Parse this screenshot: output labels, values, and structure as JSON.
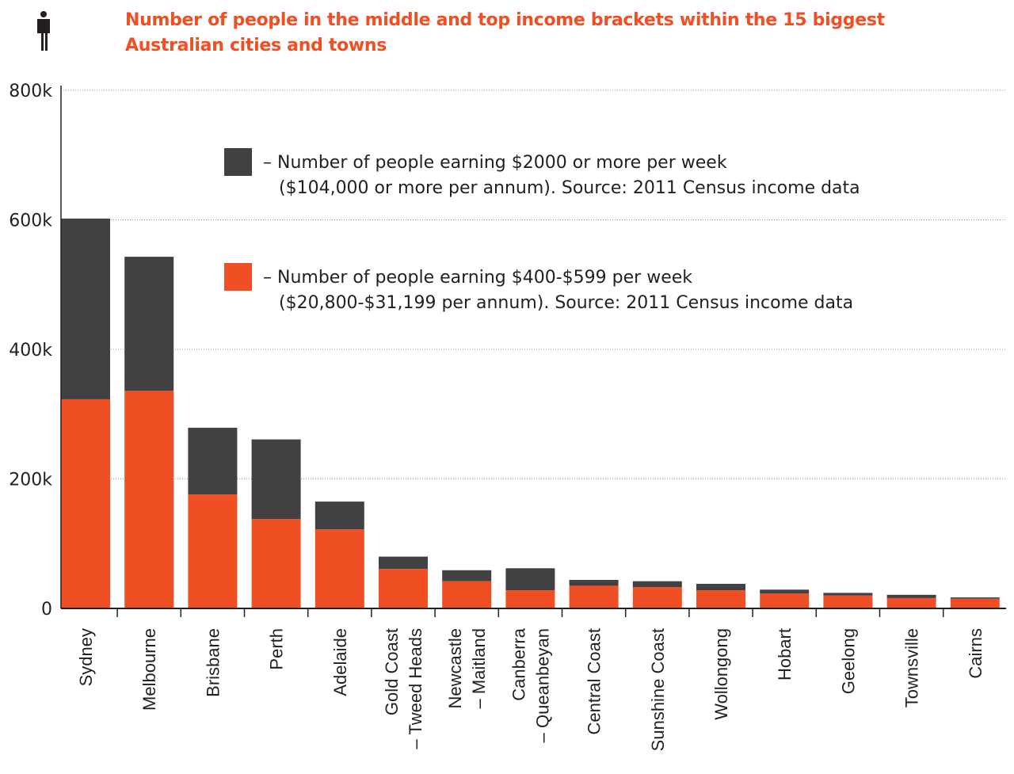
{
  "colors": {
    "top_bracket": "#414042",
    "middle_bracket": "#f04e23",
    "title": "#f04e23"
  },
  "icon": "person-icon",
  "chart_data": {
    "type": "bar",
    "stacked": true,
    "title": "Number of people in the middle and top income brackets within the 15 biggest Australian cities and towns",
    "xlabel": "",
    "ylabel": "",
    "ylim": [
      0,
      800000
    ],
    "yticks": [
      0,
      200000,
      400000,
      600000,
      800000
    ],
    "ytick_labels": [
      "0",
      "200k",
      "400k",
      "600k",
      "800k"
    ],
    "grid": "horizontal dotted",
    "legend_placement": "top-right",
    "categories": [
      "Sydney",
      "Melbourne",
      "Brisbane",
      "Perth",
      "Adelaide",
      "Gold Coast\n– Tweed Heads",
      "Newcastle\n– Maitland",
      "Canberra\n– Queanbeyan",
      "Central Coast",
      "Sunshine Coast",
      "Wollongong",
      "Hobart",
      "Geelong",
      "Townsville",
      "Cairns"
    ],
    "series": [
      {
        "name": "– Number of people earning $400-$599 per week\n($20,800-$31,199 per annum). Source: 2011 Census income data",
        "color": "#f04e23",
        "values": [
          323000,
          336000,
          176000,
          138000,
          122000,
          61000,
          42000,
          28000,
          35000,
          33000,
          28000,
          23000,
          20000,
          16000,
          15000
        ]
      },
      {
        "name": "– Number of people earning $2000 or more per week\n($104,000 or more per annum). Source: 2011 Census income data",
        "color": "#414042",
        "values": [
          279000,
          207000,
          103000,
          123000,
          43000,
          19000,
          17000,
          34000,
          9000,
          9000,
          10000,
          6000,
          4000,
          5000,
          2000
        ]
      }
    ]
  }
}
